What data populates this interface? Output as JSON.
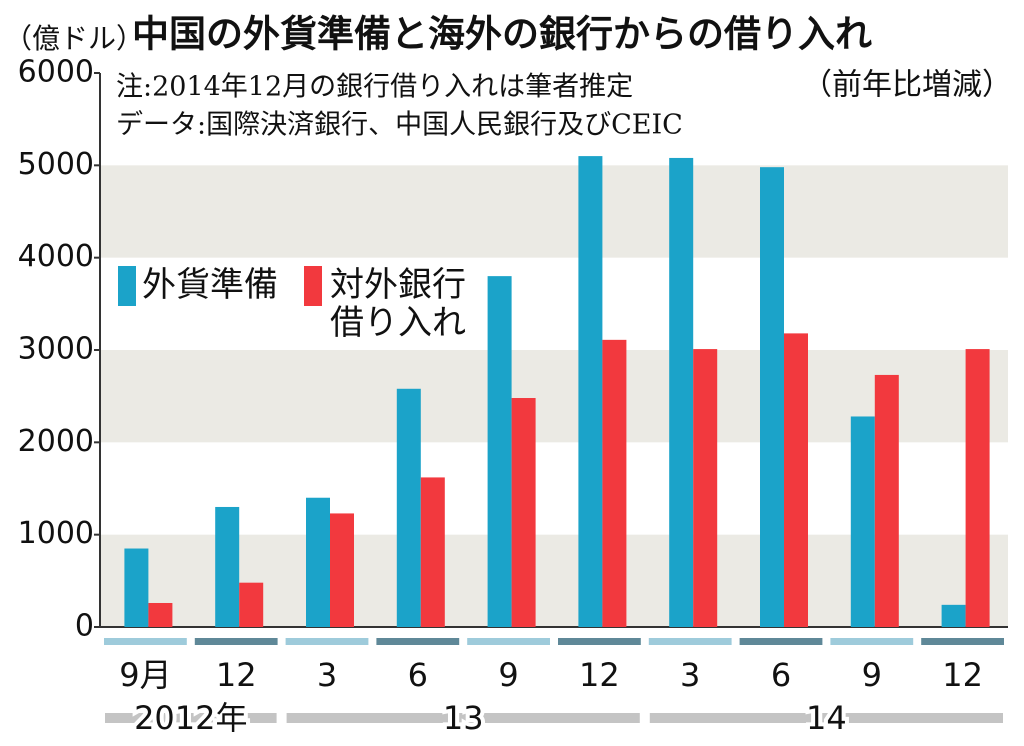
{
  "chart_data": {
    "type": "bar",
    "title": "中国の外貨準備と海外の銀行からの借り入れ",
    "unit": "（億ドル）",
    "subtitle": "（前年比増減）",
    "notes": [
      "注:2014年12月の銀行借り入れは筆者推定",
      "データ:国際決済銀行、中国人民銀行及びCEIC"
    ],
    "categories": [
      "9月",
      "12",
      "3",
      "6",
      "9",
      "12",
      "3",
      "6",
      "9",
      "12"
    ],
    "year_labels": [
      "2012年",
      "13",
      "14"
    ],
    "series": [
      {
        "name": "外貨準備",
        "color": "#1ba3c9",
        "values": [
          850,
          1300,
          1400,
          2580,
          3800,
          5100,
          5080,
          4980,
          2280,
          240
        ]
      },
      {
        "name": "対外銀行借り入れ",
        "color": "#f2393e",
        "values": [
          260,
          480,
          1230,
          1620,
          2480,
          3110,
          3010,
          3180,
          2730,
          3010
        ]
      }
    ],
    "ylim": [
      0,
      6000
    ],
    "yticks": [
      0,
      1000,
      2000,
      3000,
      4000,
      5000,
      6000
    ]
  }
}
